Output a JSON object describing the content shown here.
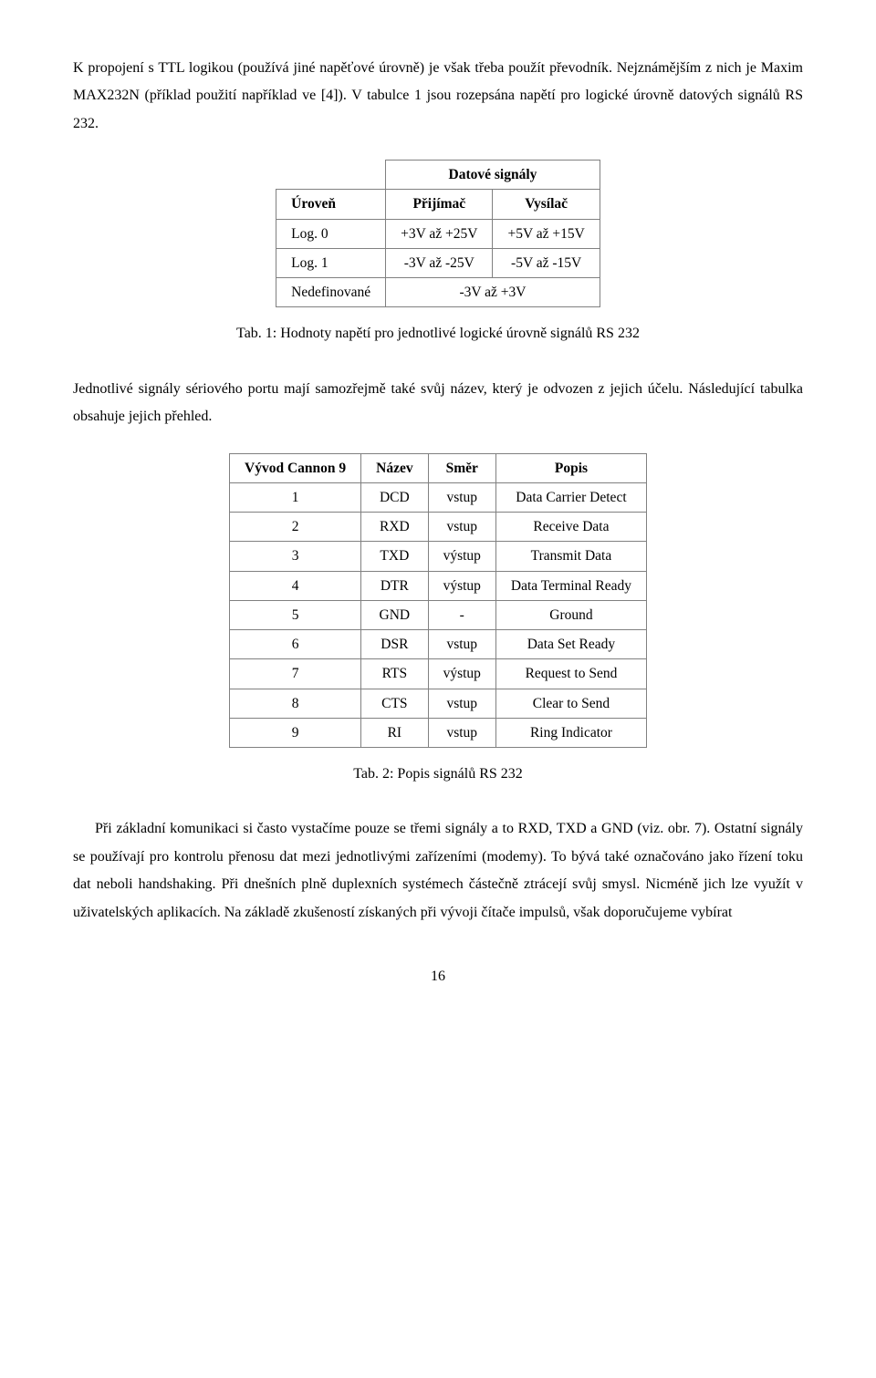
{
  "para1": "K propojení s TTL logikou (používá jiné napěťové úrovně) je však třeba použít převodník. Nejznámějším z nich je Maxim MAX232N (příklad použití například ve [4]). V tabulce 1 jsou rozepsána napětí pro logické úrovně datových signálů RS 232.",
  "table1": {
    "datove_header": "Datové signály",
    "headers": [
      "Úroveň",
      "Přijímač",
      "Vysílač"
    ],
    "rows": [
      [
        "Log. 0",
        "+3V až +25V",
        "+5V až +15V"
      ],
      [
        "Log. 1",
        "-3V až -25V",
        "-5V až -15V"
      ],
      [
        "Nedefinované",
        "-3V až +3V",
        ""
      ]
    ],
    "caption": "Tab. 1: Hodnoty napětí pro jednotlivé logické úrovně signálů RS 232"
  },
  "para2": "Jednotlivé signály sériového portu mají samozřejmě také svůj název, který je odvozen z jejich účelu. Následující tabulka obsahuje jejich přehled.",
  "table2": {
    "headers": [
      "Vývod Cannon 9",
      "Název",
      "Směr",
      "Popis"
    ],
    "rows": [
      [
        "1",
        "DCD",
        "vstup",
        "Data Carrier Detect"
      ],
      [
        "2",
        "RXD",
        "vstup",
        "Receive Data"
      ],
      [
        "3",
        "TXD",
        "výstup",
        "Transmit Data"
      ],
      [
        "4",
        "DTR",
        "výstup",
        "Data Terminal Ready"
      ],
      [
        "5",
        "GND",
        "-",
        "Ground"
      ],
      [
        "6",
        "DSR",
        "vstup",
        "Data Set Ready"
      ],
      [
        "7",
        "RTS",
        "výstup",
        "Request to Send"
      ],
      [
        "8",
        "CTS",
        "vstup",
        "Clear to Send"
      ],
      [
        "9",
        "RI",
        "vstup",
        "Ring Indicator"
      ]
    ],
    "caption": "Tab. 2: Popis signálů RS 232"
  },
  "para3": "Při základní komunikaci si často vystačíme pouze se třemi signály a to RXD, TXD a GND (viz. obr. 7). Ostatní signály se používají pro kontrolu přenosu dat mezi jednotlivými zařízeními (modemy). To bývá také označováno jako řízení toku dat neboli handshaking. Při dnešních plně duplexních systémech částečně ztrácejí svůj smysl. Nicméně jich lze využít v uživatelských aplikacích. Na základě  zkušeností získaných při vývoji čítače impulsů, však doporučujeme vybírat",
  "pagenum": "16"
}
